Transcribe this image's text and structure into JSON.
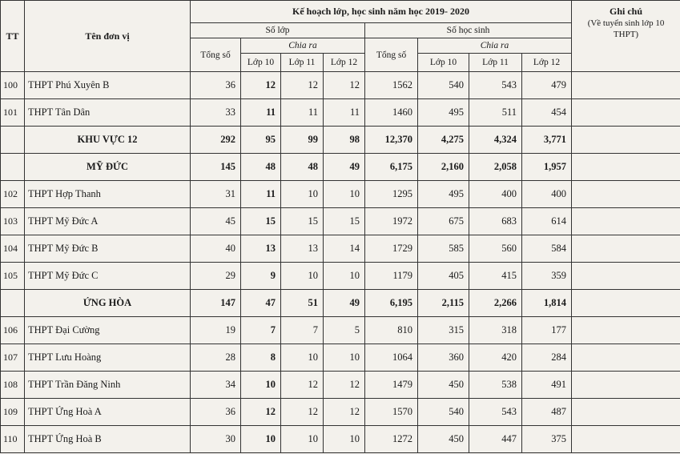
{
  "header": {
    "tt": "TT",
    "name": "Tên đơn vị",
    "plan": "Kế hoạch lớp, học sinh năm học 2019- 2020",
    "so_lop": {
      "label": "Số lớp",
      "total": "Tổng số",
      "split": "Chia ra",
      "grades": [
        "Lớp 10",
        "Lớp 11",
        "Lớp 12"
      ]
    },
    "so_hoc_sinh": {
      "label": "Số học sinh",
      "total": "Tổng số",
      "split": "Chia ra",
      "grades": [
        "Lớp 10",
        "Lớp 11",
        "Lớp 12"
      ]
    },
    "note": "Ghi chú",
    "note_detail": "(Về tuyển sinh lớp 10 THPT)"
  },
  "rows": [
    {
      "tt": "100",
      "name": "THPT Phú Xuyên B",
      "cells": [
        "36",
        "12",
        "12",
        "12",
        "1562",
        "540",
        "543",
        "479"
      ]
    },
    {
      "tt": "101",
      "name": "THPT Tân Dân",
      "cells": [
        "33",
        "11",
        "11",
        "11",
        "1460",
        "495",
        "511",
        "454"
      ]
    },
    {
      "name": "KHU VỰC 12",
      "cells": [
        "292",
        "95",
        "99",
        "98",
        "12,370",
        "4,275",
        "4,324",
        "3,771"
      ]
    },
    {
      "name": "MỸ ĐỨC",
      "cells": [
        "145",
        "48",
        "48",
        "49",
        "6,175",
        "2,160",
        "2,058",
        "1,957"
      ]
    },
    {
      "tt": "102",
      "name": "THPT Hợp Thanh",
      "cells": [
        "31",
        "11",
        "10",
        "10",
        "1295",
        "495",
        "400",
        "400"
      ]
    },
    {
      "tt": "103",
      "name": "THPT Mỹ Đức A",
      "cells": [
        "45",
        "15",
        "15",
        "15",
        "1972",
        "675",
        "683",
        "614"
      ]
    },
    {
      "tt": "104",
      "name": "THPT Mỹ Đức B",
      "cells": [
        "40",
        "13",
        "13",
        "14",
        "1729",
        "585",
        "560",
        "584"
      ]
    },
    {
      "tt": "105",
      "name": "THPT Mỹ Đức C",
      "cells": [
        "29",
        "9",
        "10",
        "10",
        "1179",
        "405",
        "415",
        "359"
      ]
    },
    {
      "name": "ỨNG HÒA",
      "cells": [
        "147",
        "47",
        "51",
        "49",
        "6,195",
        "2,115",
        "2,266",
        "1,814"
      ]
    },
    {
      "tt": "106",
      "name": "THPT Đại Cường",
      "cells": [
        "19",
        "7",
        "7",
        "5",
        "810",
        "315",
        "318",
        "177"
      ]
    },
    {
      "tt": "107",
      "name": "THPT Lưu Hoàng",
      "cells": [
        "28",
        "8",
        "10",
        "10",
        "1064",
        "360",
        "420",
        "284"
      ]
    },
    {
      "tt": "108",
      "name": "THPT Trần Đăng Ninh",
      "cells": [
        "34",
        "10",
        "12",
        "12",
        "1479",
        "450",
        "538",
        "491"
      ]
    },
    {
      "tt": "109",
      "name": "THPT Ứng Hoà A",
      "cells": [
        "36",
        "12",
        "12",
        "12",
        "1570",
        "540",
        "543",
        "487"
      ]
    },
    {
      "tt": "110",
      "name": "THPT Ứng Hoà B",
      "cells": [
        "30",
        "10",
        "10",
        "10",
        "1272",
        "450",
        "447",
        "375"
      ]
    }
  ]
}
